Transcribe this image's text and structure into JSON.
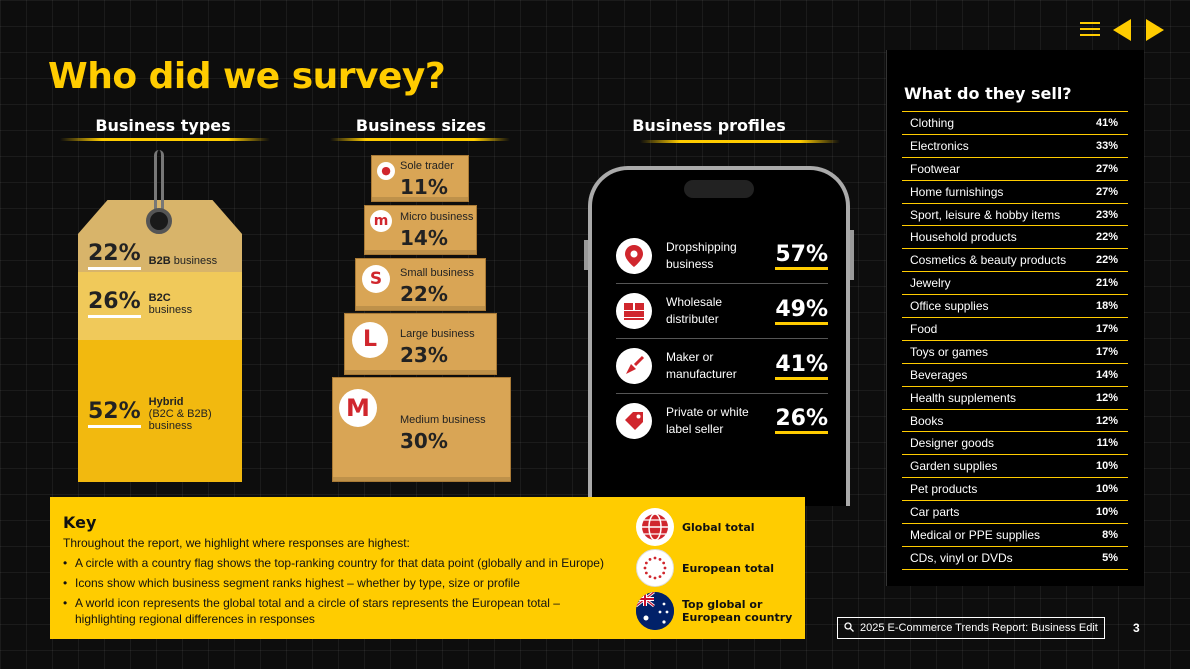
{
  "title": "Who did we survey?",
  "sections": {
    "types": "Business types",
    "sizes": "Business sizes",
    "profiles": "Business profiles"
  },
  "business_types": [
    {
      "pct": "22%",
      "bold": "B2B",
      "rest": " business"
    },
    {
      "pct": "26%",
      "bold": "B2C",
      "rest": "business"
    },
    {
      "pct": "52%",
      "bold": "Hybrid",
      "rest": "(B2C & B2B)",
      "rest2": "business"
    }
  ],
  "business_sizes": [
    {
      "icon": "person-icon",
      "label": "Sole trader",
      "pct": "11%"
    },
    {
      "icon": "m-small-icon",
      "letter": "m",
      "label": "Micro business",
      "pct": "14%"
    },
    {
      "icon": "s-icon",
      "letter": "S",
      "label": "Small business",
      "pct": "22%"
    },
    {
      "icon": "l-icon",
      "letter": "L",
      "label": "Large business",
      "pct": "23%"
    },
    {
      "icon": "m-large-icon",
      "letter": "M",
      "label": "Medium business",
      "pct": "30%"
    }
  ],
  "business_profiles": [
    {
      "icon": "location-pin-icon",
      "label1": "Dropshipping",
      "label2": "business",
      "pct": "57%"
    },
    {
      "icon": "pallet-icon",
      "label1": "Wholesale",
      "label2": "distributer",
      "pct": "49%"
    },
    {
      "icon": "trowel-icon",
      "label1": "Maker or",
      "label2": "manufacturer",
      "pct": "41%"
    },
    {
      "icon": "price-tag-icon",
      "label1": "Private or white",
      "label2": "label seller",
      "pct": "26%"
    }
  ],
  "sell": {
    "title": "What do they sell?",
    "items": [
      {
        "label": "Clothing",
        "value": "41%"
      },
      {
        "label": "Electronics",
        "value": "33%"
      },
      {
        "label": "Footwear",
        "value": "27%"
      },
      {
        "label": "Home furnishings",
        "value": "27%"
      },
      {
        "label": "Sport, leisure & hobby items",
        "value": "23%"
      },
      {
        "label": "Household products",
        "value": "22%"
      },
      {
        "label": "Cosmetics & beauty products",
        "value": "22%"
      },
      {
        "label": "Jewelry",
        "value": "21%"
      },
      {
        "label": "Office supplies",
        "value": "18%"
      },
      {
        "label": "Food",
        "value": "17%"
      },
      {
        "label": "Toys or games",
        "value": "17%"
      },
      {
        "label": "Beverages",
        "value": "14%"
      },
      {
        "label": "Health supplements",
        "value": "12%"
      },
      {
        "label": "Books",
        "value": "12%"
      },
      {
        "label": "Designer goods",
        "value": "11%"
      },
      {
        "label": "Garden supplies",
        "value": "10%"
      },
      {
        "label": "Pet products",
        "value": "10%"
      },
      {
        "label": "Car parts",
        "value": "10%"
      },
      {
        "label": "Medical or PPE supplies",
        "value": "8%"
      },
      {
        "label": "CDs, vinyl or DVDs",
        "value": "5%"
      }
    ]
  },
  "key": {
    "title": "Key",
    "intro": "Throughout the report, we highlight where responses are highest:",
    "bullets": [
      "A circle with a country flag shows the top-ranking country for that data point (globally and in Europe)",
      "Icons show which business segment ranks highest – whether by type, size or profile",
      "A world icon represents the global total and a circle of stars represents the European total – highlighting regional differences in responses"
    ],
    "legend": [
      {
        "icon": "globe-icon",
        "label1": "Global total",
        "label2": ""
      },
      {
        "icon": "eu-stars-icon",
        "label1": "European total",
        "label2": ""
      },
      {
        "icon": "australia-flag-icon",
        "label1": "Top global or",
        "label2": "European country"
      }
    ]
  },
  "footer": {
    "search_label": "2025 E-Commerce Trends Report: Business Edit",
    "page": "3"
  },
  "colors": {
    "accent": "#ffcc00",
    "red": "#d0262d",
    "box": "#d9a555"
  }
}
